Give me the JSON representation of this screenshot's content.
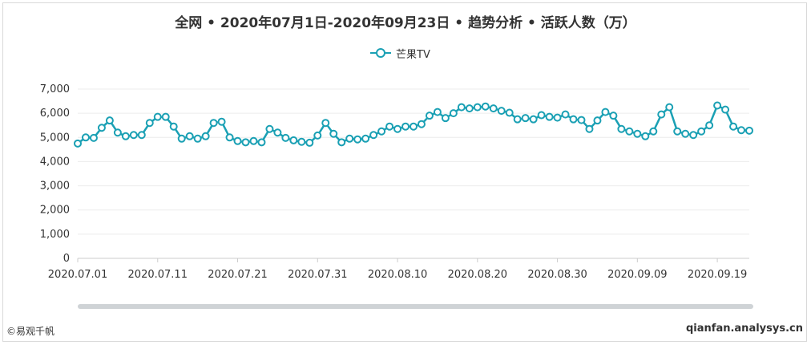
{
  "chart_data": {
    "type": "line",
    "title": "全网 • 2020年07月1日-2020年09月23日 • 趋势分析 • 活跃人数（万）",
    "legend": "top-center",
    "grid": true,
    "ylim": [
      0,
      7000
    ],
    "y_ticks": [
      "0",
      "1,000",
      "2,000",
      "3,000",
      "4,000",
      "5,000",
      "6,000",
      "7,000"
    ],
    "x_tick_labels": [
      "2020.07.01",
      "2020.07.11",
      "2020.07.21",
      "2020.07.31",
      "2020.08.10",
      "2020.08.20",
      "2020.08.30",
      "2020.09.09",
      "2020.09.19"
    ],
    "series": [
      {
        "name": "芒果TV",
        "color": "#1aa0b4",
        "x": [
          "2020.07.01",
          "2020.07.02",
          "2020.07.03",
          "2020.07.04",
          "2020.07.05",
          "2020.07.06",
          "2020.07.07",
          "2020.07.08",
          "2020.07.09",
          "2020.07.10",
          "2020.07.11",
          "2020.07.12",
          "2020.07.13",
          "2020.07.14",
          "2020.07.15",
          "2020.07.16",
          "2020.07.17",
          "2020.07.18",
          "2020.07.19",
          "2020.07.20",
          "2020.07.21",
          "2020.07.22",
          "2020.07.23",
          "2020.07.24",
          "2020.07.25",
          "2020.07.26",
          "2020.07.27",
          "2020.07.28",
          "2020.07.29",
          "2020.07.30",
          "2020.07.31",
          "2020.08.01",
          "2020.08.02",
          "2020.08.03",
          "2020.08.04",
          "2020.08.05",
          "2020.08.06",
          "2020.08.07",
          "2020.08.08",
          "2020.08.09",
          "2020.08.10",
          "2020.08.11",
          "2020.08.12",
          "2020.08.13",
          "2020.08.14",
          "2020.08.15",
          "2020.08.16",
          "2020.08.17",
          "2020.08.18",
          "2020.08.19",
          "2020.08.20",
          "2020.08.21",
          "2020.08.22",
          "2020.08.23",
          "2020.08.24",
          "2020.08.25",
          "2020.08.26",
          "2020.08.27",
          "2020.08.28",
          "2020.08.29",
          "2020.08.30",
          "2020.08.31",
          "2020.09.01",
          "2020.09.02",
          "2020.09.03",
          "2020.09.04",
          "2020.09.05",
          "2020.09.06",
          "2020.09.07",
          "2020.09.08",
          "2020.09.09",
          "2020.09.10",
          "2020.09.11",
          "2020.09.12",
          "2020.09.13",
          "2020.09.14",
          "2020.09.15",
          "2020.09.16",
          "2020.09.17",
          "2020.09.18",
          "2020.09.19",
          "2020.09.20",
          "2020.09.21",
          "2020.09.22",
          "2020.09.23"
        ],
        "values": [
          4750,
          5000,
          4980,
          5400,
          5700,
          5200,
          5050,
          5100,
          5100,
          5600,
          5850,
          5850,
          5450,
          4950,
          5050,
          4950,
          5050,
          5600,
          5650,
          5000,
          4850,
          4800,
          4850,
          4800,
          5350,
          5200,
          4980,
          4880,
          4820,
          4780,
          5080,
          5600,
          5150,
          4800,
          4950,
          4920,
          4950,
          5100,
          5250,
          5450,
          5350,
          5450,
          5450,
          5550,
          5900,
          6050,
          5800,
          6000,
          6250,
          6200,
          6250,
          6280,
          6200,
          6100,
          6020,
          5750,
          5800,
          5750,
          5920,
          5850,
          5820,
          5950,
          5750,
          5720,
          5350,
          5700,
          6050,
          5900,
          5350,
          5250,
          5150,
          5050,
          5250,
          5950,
          6250,
          5250,
          5150,
          5100,
          5250,
          5500,
          6320,
          6150,
          5450,
          5300,
          5280
        ]
      }
    ]
  },
  "footer": {
    "brand": "©易观千帆",
    "site": "qianfan.analysys.cn"
  }
}
